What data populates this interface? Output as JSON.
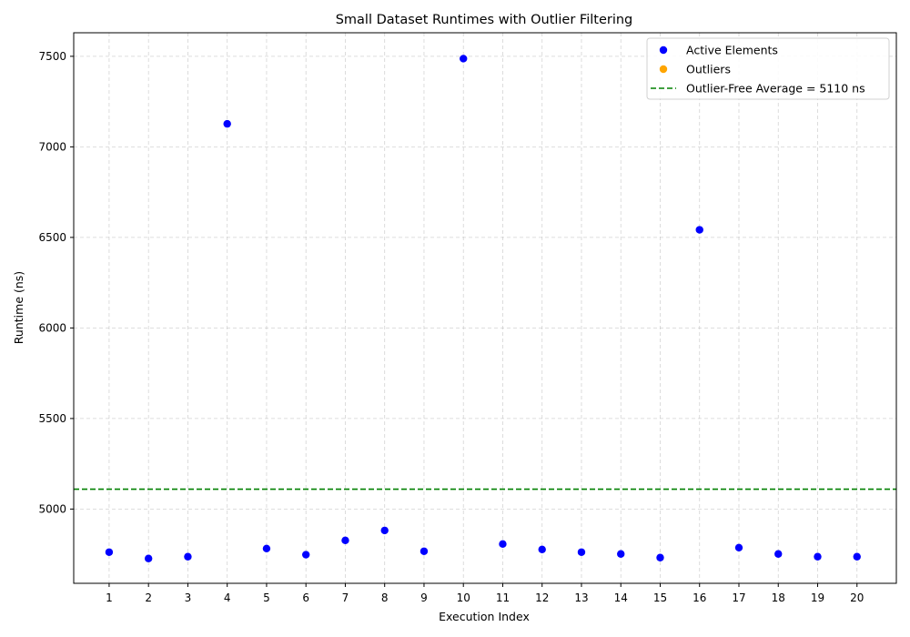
{
  "chart_data": {
    "type": "scatter",
    "title": "Small Dataset Runtimes with Outlier Filtering",
    "xlabel": "Execution Index",
    "ylabel": "Runtime (ns)",
    "xlim": [
      0.1,
      21.0
    ],
    "ylim": [
      4590,
      7630
    ],
    "xticks": [
      1,
      2,
      3,
      4,
      5,
      6,
      7,
      8,
      9,
      10,
      11,
      12,
      13,
      14,
      15,
      16,
      17,
      18,
      19,
      20
    ],
    "yticks": [
      5000,
      5500,
      6000,
      6500,
      7000,
      7500
    ],
    "grid": true,
    "legend_position": "top-right",
    "series": [
      {
        "name": "Active Elements",
        "color": "#0000ff",
        "x": [
          1,
          2,
          3,
          4,
          5,
          6,
          7,
          8,
          9,
          10,
          11,
          12,
          13,
          14,
          15,
          16,
          17,
          18,
          19,
          20
        ],
        "y": [
          4762,
          4727,
          4737,
          7127,
          4782,
          4748,
          4827,
          4882,
          4767,
          7487,
          4807,
          4777,
          4762,
          4752,
          4732,
          6542,
          4787,
          4752,
          4737,
          4737
        ]
      },
      {
        "name": "Outliers",
        "color": "#ffa500",
        "x": [],
        "y": []
      }
    ],
    "reference_lines": [
      {
        "name": "Outlier-Free Average = 5110 ns",
        "orientation": "horizontal",
        "value": 5110,
        "color": "#008000",
        "style": "dashed"
      }
    ]
  }
}
